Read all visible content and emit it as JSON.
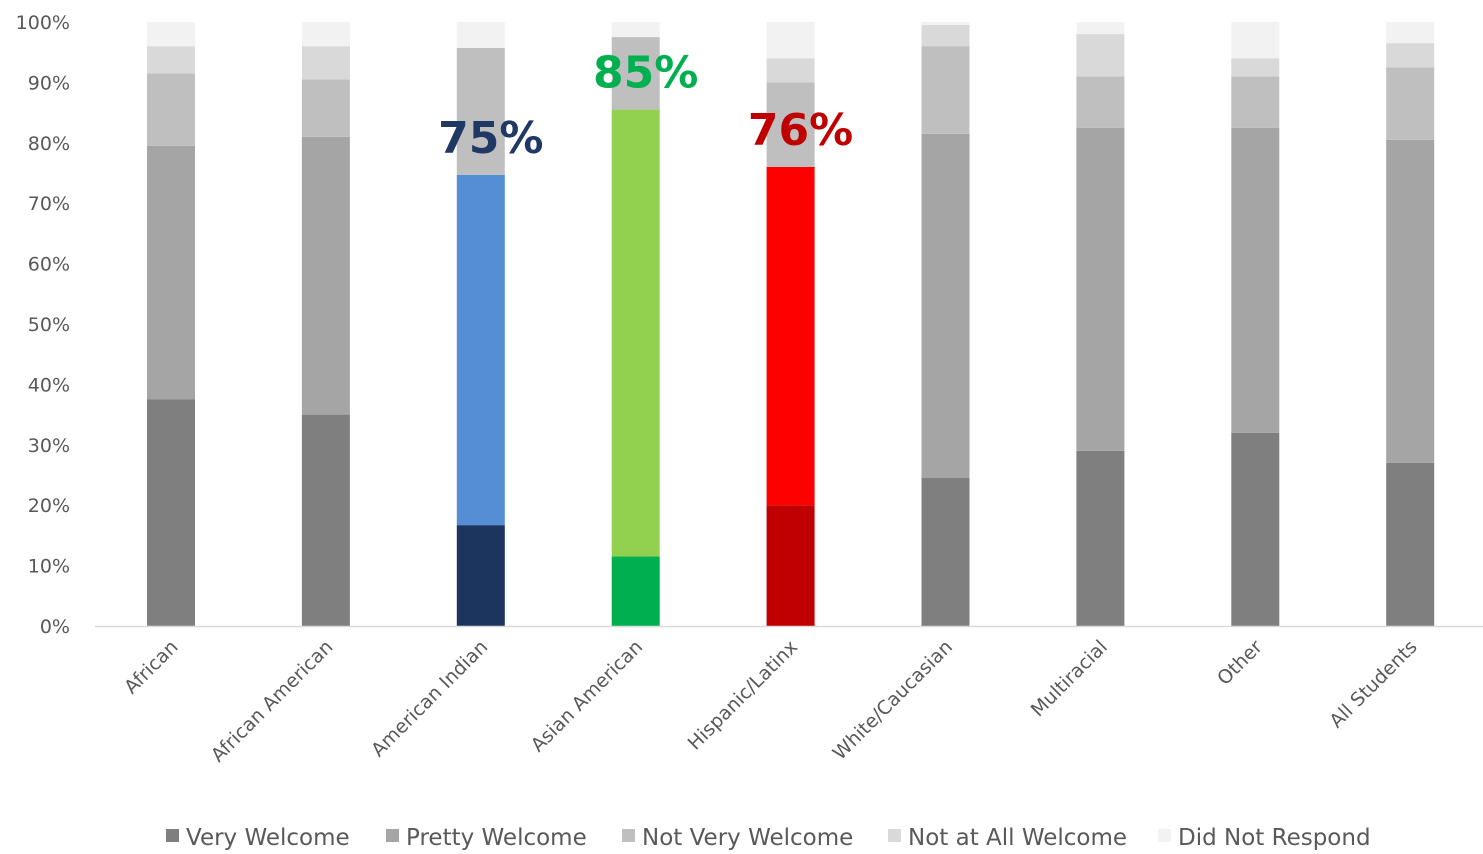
{
  "chart_data": {
    "type": "bar",
    "stacked": true,
    "percent": true,
    "title": "",
    "xlabel": "",
    "ylabel": "",
    "ylim": [
      0,
      100
    ],
    "y_ticks": [
      "0%",
      "10%",
      "20%",
      "30%",
      "40%",
      "50%",
      "60%",
      "70%",
      "80%",
      "90%",
      "100%"
    ],
    "grid": false,
    "legend_position": "bottom",
    "categories": [
      "African",
      "African American",
      "American Indian",
      "Asian American",
      "Hispanic/Latinx",
      "White/Caucasian",
      "Multiracial",
      "Other",
      "All Students"
    ],
    "series": [
      {
        "name": "Very Welcome",
        "color": "#7f7f7f",
        "values": [
          37.5,
          35,
          16.7,
          11.5,
          20,
          24.5,
          29,
          32,
          27
        ]
      },
      {
        "name": "Pretty Welcome",
        "color": "#a5a5a5",
        "values": [
          42,
          46,
          58,
          74,
          56,
          57,
          53.5,
          50.5,
          53.5
        ]
      },
      {
        "name": "Not Very Welcome",
        "color": "#bfbfbf",
        "values": [
          12,
          9.5,
          21,
          12,
          14,
          14.5,
          8.5,
          8.5,
          12
        ]
      },
      {
        "name": "Not at All Welcome",
        "color": "#d9d9d9",
        "values": [
          4.5,
          5.5,
          0,
          0,
          4,
          3.5,
          7,
          3,
          4
        ]
      },
      {
        "name": "Did Not Respond",
        "color": "#f2f2f2",
        "values": [
          4,
          4,
          4.3,
          2.5,
          6,
          0.5,
          2,
          6,
          3.5
        ]
      }
    ],
    "highlights": [
      {
        "category": "American Indian",
        "label": "75%",
        "label_color": "#1f3864",
        "segment_colors": [
          "#1c355e",
          "#558ed5"
        ]
      },
      {
        "category": "Asian American",
        "label": "85%",
        "label_color": "#00b050",
        "segment_colors": [
          "#00b050",
          "#92d050"
        ]
      },
      {
        "category": "Hispanic/Latinx",
        "label": "76%",
        "label_color": "#c00000",
        "segment_colors": [
          "#c00000",
          "#ff0000"
        ]
      }
    ]
  }
}
